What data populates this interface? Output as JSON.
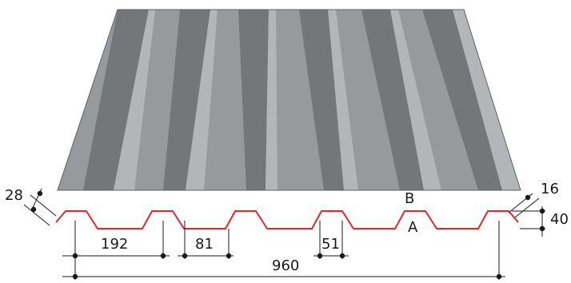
{
  "colors": {
    "sheet_top": "#979a9d",
    "sheet_light": "#b3b6b9",
    "sheet_dark": "#74777a",
    "sheet_edge": "#5e6164",
    "profile_line": "#e2282b",
    "dimension_line": "#1a1a1a"
  },
  "labels": {
    "face_b": "B",
    "face_a": "A"
  },
  "dimensions": {
    "rib_pitch": "192",
    "rib_top_width": "81",
    "rib_base_width": "51",
    "total_width": "960",
    "thickness_left": "28",
    "thickness_right": "16",
    "profile_height": "40"
  }
}
